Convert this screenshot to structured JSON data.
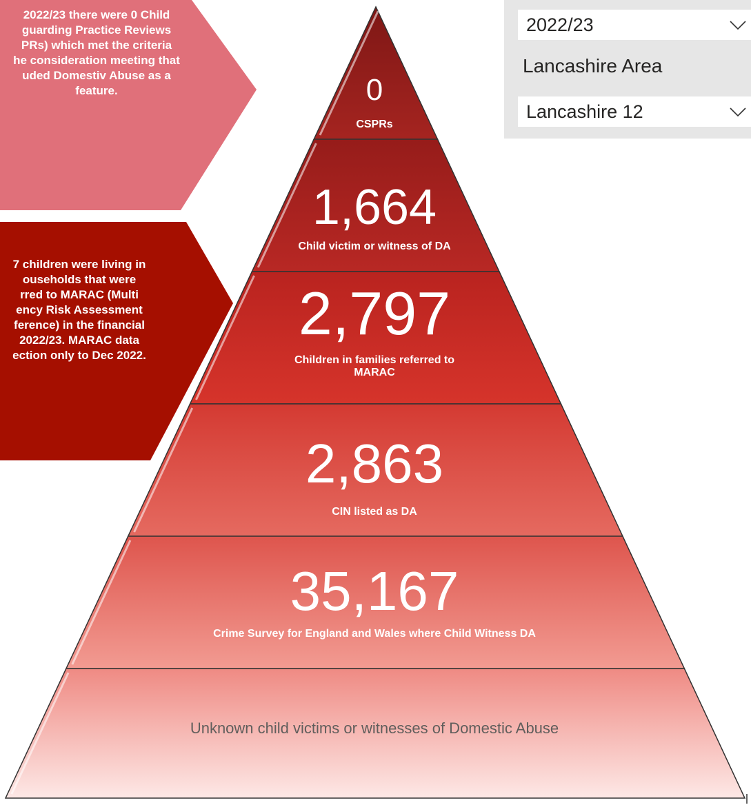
{
  "callouts": [
    {
      "lines": [
        "2022/23 there were 0 Child",
        "guarding Practice Reviews",
        "PRs) which met the  criteria",
        "he consideration meeting that",
        "uded Domestiv Abuse as a",
        "feature."
      ],
      "color": "#e0707a"
    },
    {
      "lines": [
        "7 children were living in",
        "ouseholds that were",
        "rred  to  MARAC (Multi",
        "ency Risk  Assessment",
        "ference) in the financial",
        "2022/23. MARAC data",
        "ection only to Dec 2022."
      ],
      "color": "#a50f00"
    }
  ],
  "filters": {
    "year_value": "2022/23",
    "area_label": "Lancashire Area",
    "area_value": "Lancashire 12"
  },
  "pyramid": {
    "levels": [
      {
        "value": "0",
        "label_lines": [
          "CSPRs"
        ],
        "color_top": "#7e1715",
        "color_bottom": "#a52420"
      },
      {
        "value": "1,664",
        "label_lines": [
          "Child victim or witness of DA"
        ],
        "color_top": "#961c1a",
        "color_bottom": "#b82824"
      },
      {
        "value": "2,797",
        "label_lines": [
          "Children in families referred to",
          "MARAC"
        ],
        "color_top": "#b9231f",
        "color_bottom": "#d6342b"
      },
      {
        "value": "2,863",
        "label_lines": [
          "CIN listed as DA"
        ],
        "color_top": "#d43a32",
        "color_bottom": "#e56a60"
      },
      {
        "value": "35,167",
        "label_lines": [
          "Crime Survey for England and Wales where Child Witness DA"
        ],
        "color_top": "#de554d",
        "color_bottom": "#f29b92"
      },
      {
        "value": "",
        "label_lines": [
          "Unknown child victims or witnesses of Domestic Abuse"
        ],
        "color_top": "#ef8a83",
        "color_bottom": "#fde8e6"
      }
    ]
  }
}
